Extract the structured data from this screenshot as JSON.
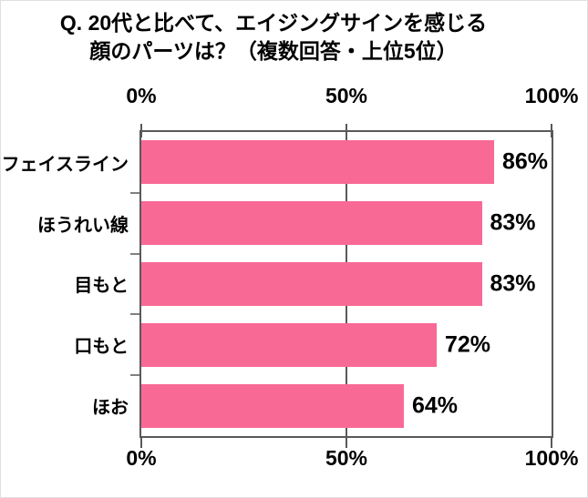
{
  "title": {
    "line1": "Q. 20代と比べて、エイジングサインを感じる",
    "line2": "顔のパーツは？（複数回答・上位5位）"
  },
  "chart_data": {
    "type": "bar",
    "orientation": "horizontal",
    "title": "Q. 20代と比べて、エイジングサインを感じる 顔のパーツは？（複数回答・上位5位）",
    "categories": [
      "フェイスライン",
      "ほうれい線",
      "目もと",
      "口もと",
      "ほお"
    ],
    "values": [
      86,
      83,
      83,
      72,
      64
    ],
    "value_labels": [
      "86%",
      "83%",
      "83%",
      "72%",
      "64%"
    ],
    "x_axis": {
      "min": 0,
      "max": 100,
      "tick_values": [
        0,
        50,
        100
      ],
      "tick_labels": [
        "0%",
        "50%",
        "100%"
      ],
      "label_position": "top and bottom"
    },
    "grid": "single vertical gridline at 50%",
    "legend": "none",
    "colors": {
      "bar": "#F96996",
      "axis": "#595959",
      "left_ticks": "#808080",
      "text": "#000000",
      "background": "#FFFFFF"
    }
  }
}
